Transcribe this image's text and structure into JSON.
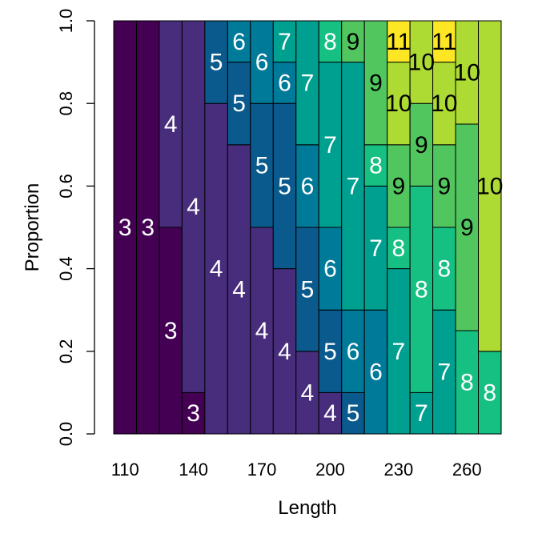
{
  "chart_data": {
    "type": "bar",
    "subtype": "stacked proportion plot",
    "xlabel": "Length",
    "ylabel": "Proportion",
    "x_tick_labels": [
      "110",
      "140",
      "170",
      "200",
      "230",
      "260"
    ],
    "x_tick_values": [
      110,
      140,
      170,
      200,
      230,
      260
    ],
    "y_tick_labels": [
      "0.0",
      "0.2",
      "0.4",
      "0.6",
      "0.8",
      "1.0"
    ],
    "ylim": [
      0,
      1
    ],
    "grid": false,
    "legend": "none",
    "color_scale": "viridis",
    "groups": [
      3,
      4,
      5,
      6,
      7,
      8,
      9,
      10,
      11
    ],
    "group_colors": {
      "3": "#440154",
      "4": "#472D7B",
      "5": "#0B5A8D",
      "6": "#007A99",
      "7": "#00A090",
      "8": "#16C083",
      "9": "#52C65E",
      "10": "#ADDB33",
      "11": "#FDE725"
    },
    "bins": [
      {
        "length": 110,
        "segments": [
          {
            "group": 3,
            "value": 1.0
          }
        ]
      },
      {
        "length": 120,
        "segments": [
          {
            "group": 3,
            "value": 1.0
          }
        ]
      },
      {
        "length": 130,
        "segments": [
          {
            "group": 3,
            "value": 0.5
          },
          {
            "group": 4,
            "value": 0.5
          }
        ]
      },
      {
        "length": 140,
        "segments": [
          {
            "group": 3,
            "value": 0.1
          },
          {
            "group": 4,
            "value": 0.9
          }
        ]
      },
      {
        "length": 150,
        "segments": [
          {
            "group": 4,
            "value": 0.8
          },
          {
            "group": 5,
            "value": 0.2
          }
        ]
      },
      {
        "length": 160,
        "segments": [
          {
            "group": 4,
            "value": 0.7
          },
          {
            "group": 5,
            "value": 0.2
          },
          {
            "group": 6,
            "value": 0.1
          }
        ]
      },
      {
        "length": 170,
        "segments": [
          {
            "group": 4,
            "value": 0.5
          },
          {
            "group": 5,
            "value": 0.3
          },
          {
            "group": 6,
            "value": 0.2
          }
        ]
      },
      {
        "length": 180,
        "segments": [
          {
            "group": 4,
            "value": 0.4
          },
          {
            "group": 5,
            "value": 0.4
          },
          {
            "group": 6,
            "value": 0.1
          },
          {
            "group": 7,
            "value": 0.1
          }
        ]
      },
      {
        "length": 190,
        "segments": [
          {
            "group": 4,
            "value": 0.2
          },
          {
            "group": 5,
            "value": 0.3
          },
          {
            "group": 6,
            "value": 0.2
          },
          {
            "group": 7,
            "value": 0.3
          }
        ]
      },
      {
        "length": 200,
        "segments": [
          {
            "group": 4,
            "value": 0.1
          },
          {
            "group": 5,
            "value": 0.2
          },
          {
            "group": 6,
            "value": 0.2
          },
          {
            "group": 7,
            "value": 0.4
          },
          {
            "group": 8,
            "value": 0.1
          }
        ]
      },
      {
        "length": 210,
        "segments": [
          {
            "group": 5,
            "value": 0.1
          },
          {
            "group": 6,
            "value": 0.2
          },
          {
            "group": 7,
            "value": 0.6
          },
          {
            "group": 9,
            "value": 0.1
          }
        ]
      },
      {
        "length": 220,
        "segments": [
          {
            "group": 6,
            "value": 0.3
          },
          {
            "group": 7,
            "value": 0.3
          },
          {
            "group": 8,
            "value": 0.1
          },
          {
            "group": 9,
            "value": 0.3
          }
        ]
      },
      {
        "length": 230,
        "segments": [
          {
            "group": 7,
            "value": 0.4
          },
          {
            "group": 8,
            "value": 0.1
          },
          {
            "group": 9,
            "value": 0.2
          },
          {
            "group": 10,
            "value": 0.2
          },
          {
            "group": 11,
            "value": 0.1
          }
        ]
      },
      {
        "length": 240,
        "segments": [
          {
            "group": 7,
            "value": 0.1
          },
          {
            "group": 8,
            "value": 0.5
          },
          {
            "group": 9,
            "value": 0.2
          },
          {
            "group": 10,
            "value": 0.2
          }
        ]
      },
      {
        "length": 250,
        "segments": [
          {
            "group": 7,
            "value": 0.3
          },
          {
            "group": 8,
            "value": 0.2
          },
          {
            "group": 9,
            "value": 0.2
          },
          {
            "group": 10,
            "value": 0.2
          },
          {
            "group": 11,
            "value": 0.1
          }
        ]
      },
      {
        "length": 260,
        "segments": [
          {
            "group": 8,
            "value": 0.25
          },
          {
            "group": 9,
            "value": 0.5
          },
          {
            "group": 10,
            "value": 0.25
          }
        ]
      },
      {
        "length": 270,
        "segments": [
          {
            "group": 8,
            "value": 0.2
          },
          {
            "group": 10,
            "value": 0.8
          }
        ]
      }
    ]
  }
}
